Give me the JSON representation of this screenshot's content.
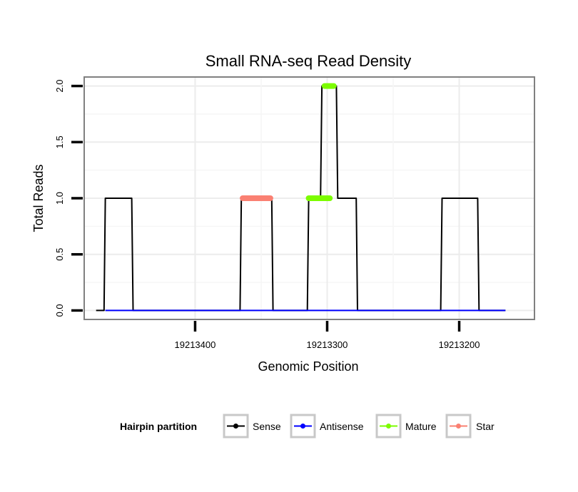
{
  "chart_data": {
    "type": "line",
    "title": "Small RNA-seq Read Density",
    "xlabel": "Genomic Position",
    "ylabel": "Total Reads",
    "xlim": [
      19213484,
      19213143
    ],
    "x_reversed": true,
    "ylim": [
      -0.08,
      2.08
    ],
    "yticks": [
      0,
      0.5,
      1,
      1.5,
      2
    ],
    "ytick_labels": [
      "0.0",
      "0.5",
      "1.0",
      "1.5",
      "2.0"
    ],
    "xticks": [
      19213400,
      19213300,
      19213200
    ],
    "xtick_labels": [
      "19213400",
      "19213300",
      "19213200"
    ],
    "grid": true,
    "series": [
      {
        "name": "Sense",
        "color": "#000000",
        "x": [
          19213475,
          19213469,
          19213468,
          19213448,
          19213447,
          19213366,
          19213365,
          19213342,
          19213341,
          19213315,
          19213314,
          19213305,
          19213304,
          19213293,
          19213292,
          19213278,
          19213277,
          19213214,
          19213213,
          19213186,
          19213185,
          19213165
        ],
        "values": [
          0,
          0,
          1,
          1,
          0,
          0,
          1,
          1,
          0,
          0,
          1,
          1,
          2,
          2,
          1,
          1,
          0,
          0,
          1,
          1,
          0,
          0
        ]
      },
      {
        "name": "Antisense",
        "color": "#0000ff",
        "x": [
          19213468,
          19213165
        ],
        "values": [
          0,
          0
        ]
      },
      {
        "name": "Mature",
        "color": "#7cfc00",
        "segments": [
          {
            "x": [
              19213314,
              19213298
            ],
            "values": [
              1,
              1
            ]
          },
          {
            "x": [
              19213302,
              19213295
            ],
            "values": [
              2,
              2
            ]
          }
        ]
      },
      {
        "name": "Star",
        "color": "#fa8072",
        "segments": [
          {
            "x": [
              19213364,
              19213343
            ],
            "values": [
              1,
              1
            ]
          }
        ]
      }
    ],
    "legend": {
      "title": "Hairpin partition",
      "position": "bottom",
      "entries": [
        {
          "label": "Sense",
          "color": "#000000"
        },
        {
          "label": "Antisense",
          "color": "#0000ff"
        },
        {
          "label": "Mature",
          "color": "#7cfc00"
        },
        {
          "label": "Star",
          "color": "#fa8072"
        }
      ]
    }
  }
}
